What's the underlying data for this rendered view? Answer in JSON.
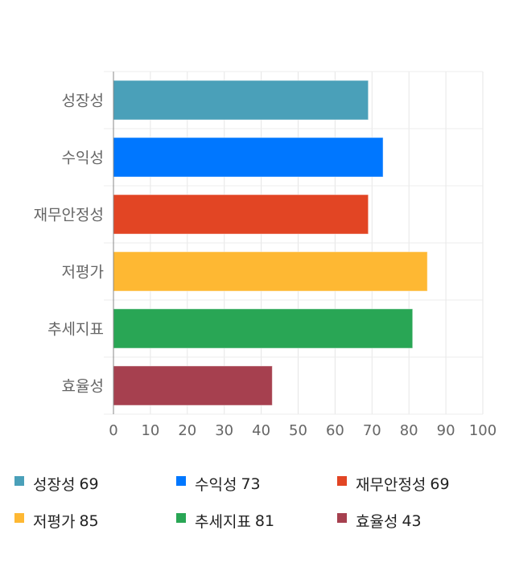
{
  "chart_data": {
    "type": "bar",
    "orientation": "horizontal",
    "categories": [
      "성장성",
      "수익성",
      "재무안정성",
      "저평가",
      "추세지표",
      "효율성"
    ],
    "values": [
      69,
      73,
      69,
      85,
      81,
      43
    ],
    "colors": [
      "#4aa0b9",
      "#0077ff",
      "#e24524",
      "#feb833",
      "#29a655",
      "#a6404f"
    ],
    "xlim": [
      0,
      100
    ],
    "xticks": [
      "0",
      "10",
      "20",
      "30",
      "40",
      "50",
      "60",
      "70",
      "80",
      "90",
      "100"
    ],
    "grid": true,
    "legend_position": "bottom",
    "legend": [
      {
        "label": "성장성",
        "value": "69"
      },
      {
        "label": "수익성",
        "value": "73"
      },
      {
        "label": "재무안정성",
        "value": "69"
      },
      {
        "label": "저평가",
        "value": "85"
      },
      {
        "label": "추세지표",
        "value": "81"
      },
      {
        "label": "효율성",
        "value": "43"
      }
    ]
  }
}
